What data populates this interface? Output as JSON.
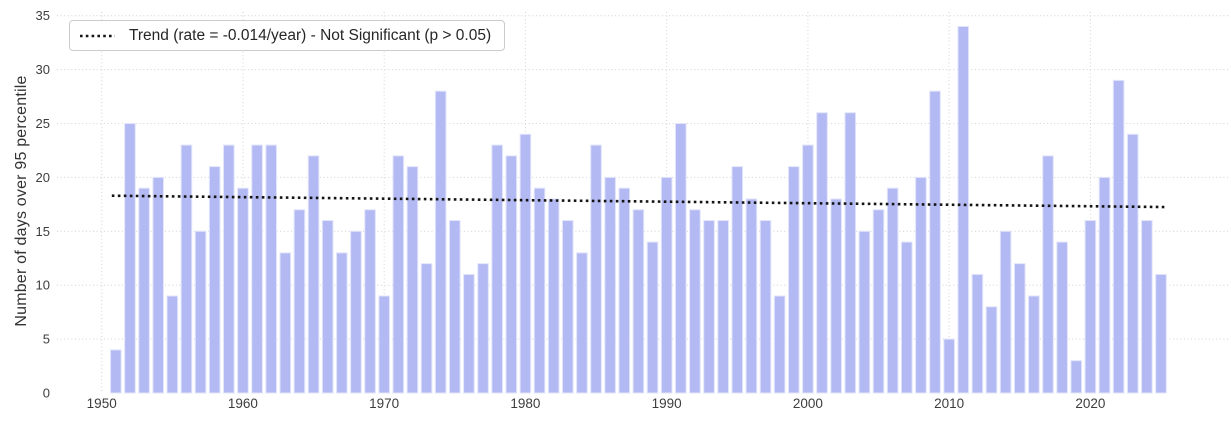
{
  "chart_data": {
    "type": "bar",
    "title": "",
    "xlabel": "",
    "ylabel": "Number of days over 95 percentile",
    "start_year": 1951,
    "values": [
      4,
      25,
      19,
      20,
      9,
      23,
      15,
      21,
      23,
      19,
      23,
      23,
      13,
      17,
      22,
      16,
      13,
      15,
      17,
      9,
      22,
      21,
      12,
      28,
      16,
      11,
      12,
      23,
      22,
      24,
      19,
      18,
      16,
      13,
      23,
      20,
      19,
      17,
      14,
      20,
      25,
      17,
      16,
      16,
      21,
      18,
      16,
      9,
      21,
      23,
      26,
      18,
      26,
      15,
      17,
      19,
      14,
      20,
      28,
      5,
      34,
      11,
      8,
      15,
      12,
      9,
      22,
      14,
      3,
      16,
      20,
      29,
      24,
      16,
      11
    ],
    "xticks": [
      1950,
      1960,
      1970,
      1980,
      1990,
      2000,
      2010,
      2020
    ],
    "yticks": [
      0,
      5,
      10,
      15,
      20,
      25,
      30,
      35
    ],
    "ylim": [
      0,
      35
    ],
    "grid": "dotted",
    "legend_position": "upper-left",
    "trend": {
      "label": "Trend (rate = -0.014/year) - Not Significant (p > 0.05)",
      "rate_per_year": -0.014,
      "p_value_note": "p > 0.05",
      "significant": false,
      "style": "dotted",
      "start_value": 18.3,
      "end_value": 17.25
    },
    "colors": {
      "bar": "#b3b9f2",
      "bar_edge": "#e2e5fb",
      "trend": "#141414",
      "grid": "#d6d6d6",
      "tick_text": "#3d3d3d",
      "label_text": "#333333",
      "legend_border": "#cccccc",
      "background": "#ffffff"
    }
  }
}
